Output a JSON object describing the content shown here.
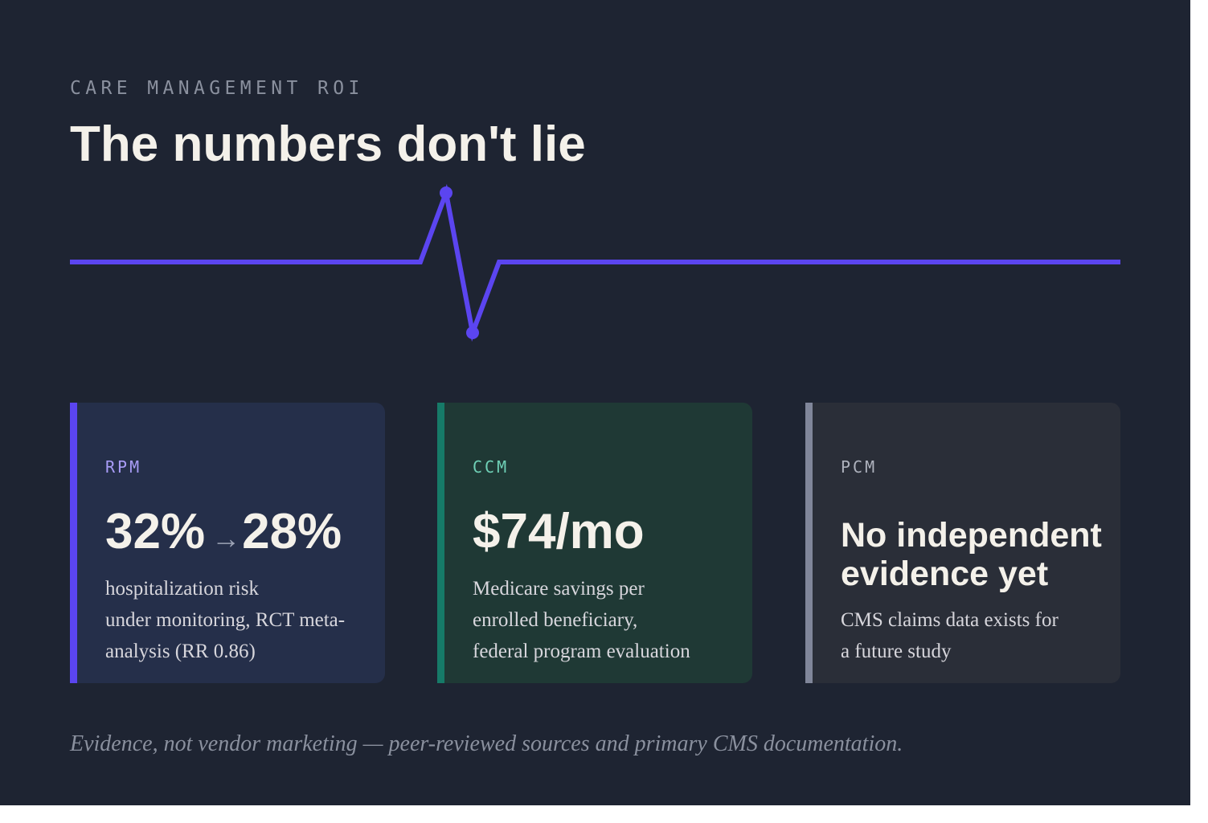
{
  "header": {
    "eyebrow": "CARE MANAGEMENT ROI",
    "title": "The numbers don't lie"
  },
  "colors": {
    "background": "#1e2432",
    "accent": "#5b45f0",
    "ccm_accent": "#167a68",
    "pcm_accent": "#80869a",
    "title_text": "#f4f1ea"
  },
  "cards": [
    {
      "label": "RPM",
      "value_from": "32%",
      "arrow": "→",
      "value_to": "28%",
      "description": [
        "hospitalization risk",
        "under monitoring, RCT meta-",
        "analysis (RR 0.86)"
      ]
    },
    {
      "label": "CCM",
      "value": "$74/mo",
      "description": [
        "Medicare savings per",
        "enrolled beneficiary,",
        "federal program evaluation"
      ]
    },
    {
      "label": "PCM",
      "value": "No independent evidence yet",
      "description": [
        "CMS claims data exists for",
        "a future study"
      ]
    }
  ],
  "footnote": "Evidence, not vendor marketing — peer-reviewed sources and primary CMS documentation."
}
